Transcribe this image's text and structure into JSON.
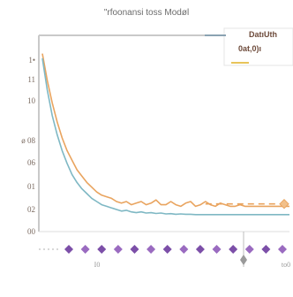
{
  "chart_data": {
    "type": "line",
    "title": "\"rfoonansi toss Modøl",
    "ylabel": "",
    "xlabel": "",
    "yticks": [
      "1•",
      "11",
      "10",
      "ø 08",
      "06",
      "01",
      "02",
      "00"
    ],
    "xtick_labels": [
      "I0",
      "to0"
    ],
    "xtick_marker_count": 14,
    "legend_labels": [
      "DatıUth",
      "0at,0)ı"
    ],
    "legend_position": "top-right",
    "grid": false,
    "ylim": [
      0,
      1.1
    ],
    "xlim": [
      0,
      100
    ],
    "series": [
      {
        "name": "DatıUth",
        "color": "#e9a45f",
        "x": [
          0,
          2,
          4,
          6,
          8,
          10,
          12,
          14,
          16,
          18,
          20,
          22,
          24,
          26,
          28,
          30,
          32,
          34,
          36,
          38,
          40,
          42,
          44,
          46,
          48,
          50,
          52,
          54,
          56,
          58,
          60,
          62,
          64,
          66,
          68,
          70,
          72,
          74,
          76,
          78,
          80,
          82,
          84,
          86,
          88,
          90,
          92,
          94,
          96,
          98,
          100
        ],
        "values": [
          1.03,
          0.86,
          0.72,
          0.6,
          0.5,
          0.42,
          0.36,
          0.3,
          0.26,
          0.22,
          0.19,
          0.16,
          0.14,
          0.13,
          0.12,
          0.1,
          0.09,
          0.1,
          0.08,
          0.09,
          0.1,
          0.08,
          0.09,
          0.11,
          0.08,
          0.08,
          0.1,
          0.08,
          0.07,
          0.09,
          0.1,
          0.07,
          0.08,
          0.1,
          0.08,
          0.07,
          0.09,
          0.08,
          0.07,
          0.07,
          0.08,
          0.07,
          0.07,
          0.07,
          0.07,
          0.07,
          0.07,
          0.07,
          0.07,
          0.07,
          0.07
        ]
      },
      {
        "name": "0at,0)ı",
        "color": "#7fb8c4",
        "x": [
          0,
          2,
          4,
          6,
          8,
          10,
          12,
          14,
          16,
          18,
          20,
          22,
          24,
          26,
          28,
          30,
          32,
          34,
          36,
          38,
          40,
          42,
          44,
          46,
          48,
          50,
          52,
          54,
          56,
          58,
          60,
          62,
          64,
          66,
          68,
          70,
          72,
          74,
          76,
          78,
          80,
          82,
          84,
          86,
          88,
          90,
          92,
          94,
          96,
          98,
          100
        ],
        "values": [
          1.0,
          0.8,
          0.64,
          0.52,
          0.42,
          0.34,
          0.27,
          0.22,
          0.18,
          0.15,
          0.12,
          0.1,
          0.08,
          0.07,
          0.06,
          0.05,
          0.04,
          0.045,
          0.035,
          0.03,
          0.035,
          0.028,
          0.03,
          0.025,
          0.028,
          0.022,
          0.024,
          0.02,
          0.022,
          0.02,
          0.02,
          0.018,
          0.018,
          0.018,
          0.018,
          0.018,
          0.018,
          0.018,
          0.018,
          0.018,
          0.018,
          0.018,
          0.018,
          0.018,
          0.018,
          0.018,
          0.018,
          0.018,
          0.018,
          0.018,
          0.018
        ]
      }
    ],
    "annotations": [
      {
        "type": "dashed-line",
        "y": 0.085,
        "x_from": 66,
        "x_to": 100,
        "color": "#e9a45f"
      }
    ]
  }
}
